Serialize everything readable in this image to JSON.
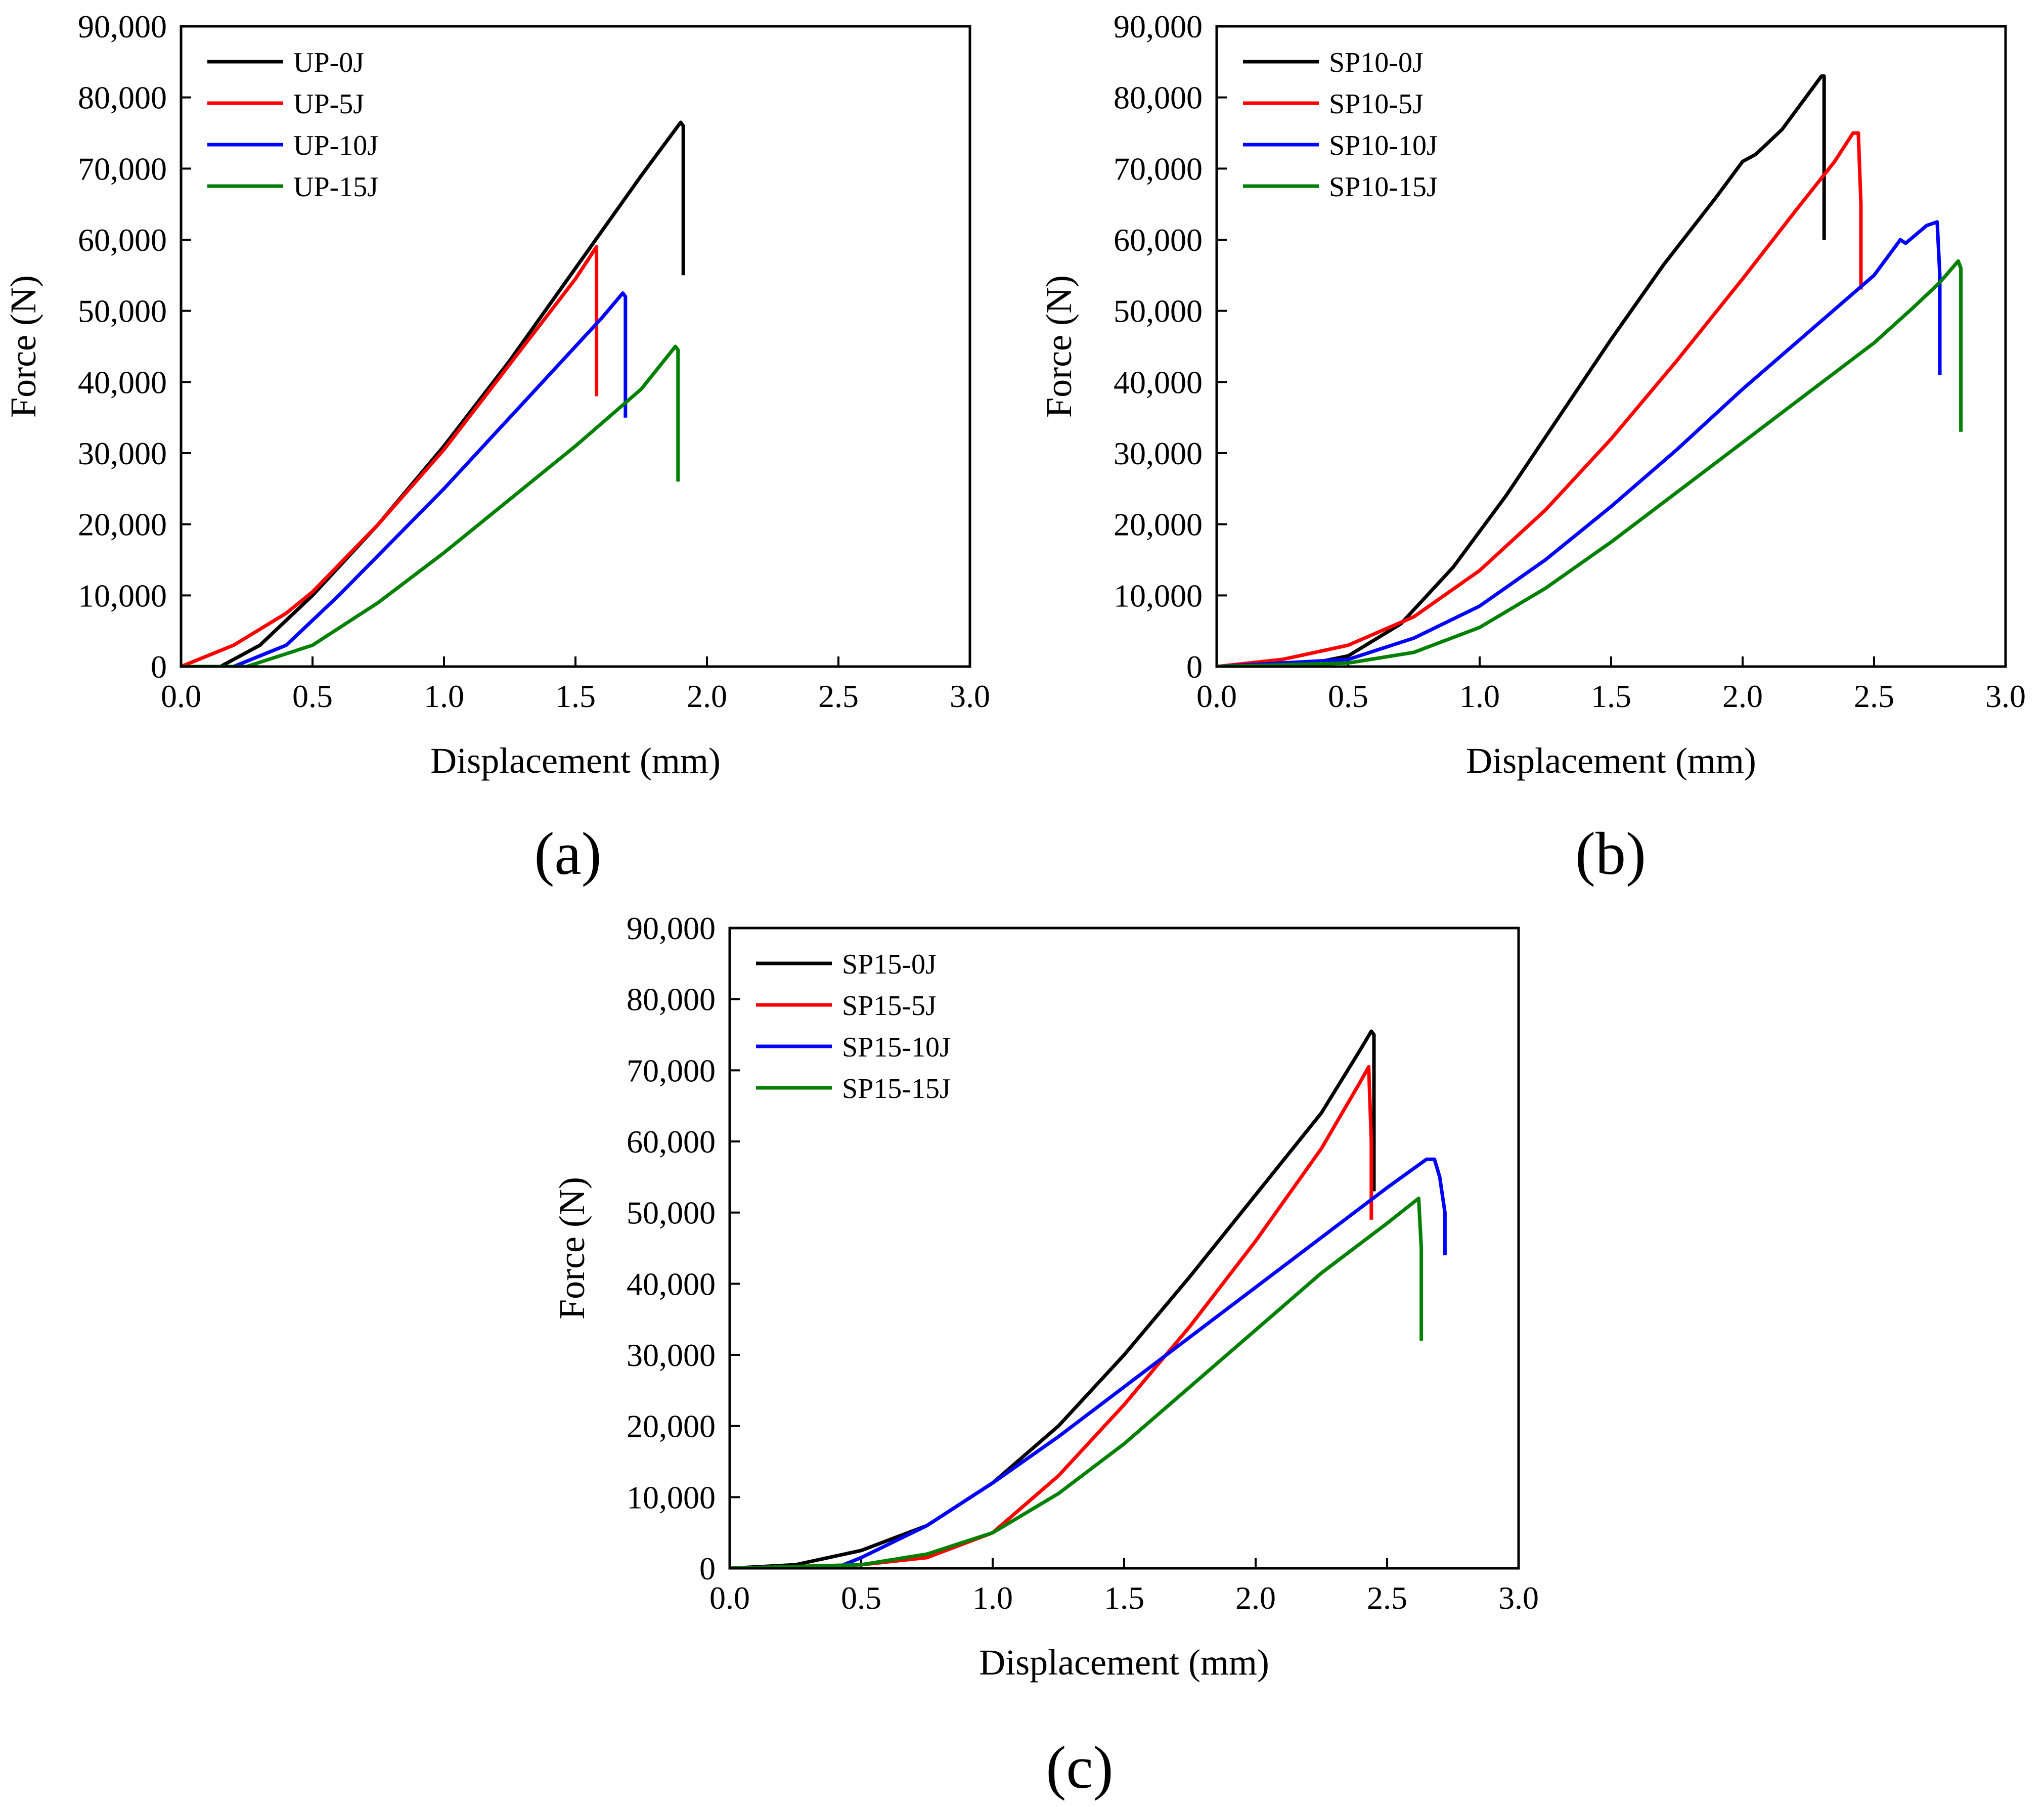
{
  "chart_data": [
    {
      "panel": "a",
      "type": "line",
      "caption": "(a)",
      "xlabel": "Displacement (mm)",
      "ylabel": "Force (N)",
      "xlim": [
        0,
        3.0
      ],
      "ylim": [
        0,
        90000
      ],
      "xticks": [
        "0.0",
        "0.5",
        "1.0",
        "1.5",
        "2.0",
        "2.5",
        "3.0"
      ],
      "yticks": [
        "0",
        "10,000",
        "20,000",
        "30,000",
        "40,000",
        "50,000",
        "60,000",
        "70,000",
        "80,000",
        "90,000"
      ],
      "legend_position": "top-left",
      "series": [
        {
          "name": "UP-0J",
          "color": "#000000",
          "points": [
            [
              0,
              0
            ],
            [
              0.15,
              0
            ],
            [
              0.3,
              3000
            ],
            [
              0.5,
              10000
            ],
            [
              0.75,
              20000
            ],
            [
              1.0,
              31000
            ],
            [
              1.25,
              43000
            ],
            [
              1.5,
              56000
            ],
            [
              1.75,
              69000
            ],
            [
              1.9,
              76500
            ],
            [
              1.91,
              76000
            ],
            [
              1.91,
              55000
            ]
          ]
        },
        {
          "name": "UP-5J",
          "color": "#ff0000",
          "points": [
            [
              0,
              0
            ],
            [
              0.2,
              3000
            ],
            [
              0.4,
              7500
            ],
            [
              0.5,
              10500
            ],
            [
              0.75,
              20000
            ],
            [
              1.0,
              30500
            ],
            [
              1.25,
              42500
            ],
            [
              1.5,
              54500
            ],
            [
              1.58,
              59000
            ],
            [
              1.58,
              52000
            ],
            [
              1.58,
              38000
            ]
          ]
        },
        {
          "name": "UP-10J",
          "color": "#0000ff",
          "points": [
            [
              0,
              0
            ],
            [
              0.2,
              0
            ],
            [
              0.4,
              3000
            ],
            [
              0.6,
              10000
            ],
            [
              0.8,
              17500
            ],
            [
              1.0,
              25000
            ],
            [
              1.2,
              33000
            ],
            [
              1.4,
              41000
            ],
            [
              1.6,
              49000
            ],
            [
              1.68,
              52500
            ],
            [
              1.69,
              52000
            ],
            [
              1.69,
              35000
            ]
          ]
        },
        {
          "name": "UP-15J",
          "color": "#008000",
          "points": [
            [
              0,
              0
            ],
            [
              0.25,
              0
            ],
            [
              0.5,
              3000
            ],
            [
              0.75,
              9000
            ],
            [
              1.0,
              16000
            ],
            [
              1.25,
              23500
            ],
            [
              1.5,
              31000
            ],
            [
              1.75,
              39000
            ],
            [
              1.88,
              45000
            ],
            [
              1.89,
              44500
            ],
            [
              1.89,
              26000
            ]
          ]
        }
      ]
    },
    {
      "panel": "b",
      "type": "line",
      "caption": "(b)",
      "xlabel": "Displacement (mm)",
      "ylabel": "Force (N)",
      "xlim": [
        0,
        3.0
      ],
      "ylim": [
        0,
        90000
      ],
      "xticks": [
        "0.0",
        "0.5",
        "1.0",
        "1.5",
        "2.0",
        "2.5",
        "3.0"
      ],
      "yticks": [
        "0",
        "10,000",
        "20,000",
        "30,000",
        "40,000",
        "50,000",
        "60,000",
        "70,000",
        "80,000",
        "90,000"
      ],
      "legend_position": "top-left",
      "series": [
        {
          "name": "SP10-0J",
          "color": "#000000",
          "points": [
            [
              0,
              0
            ],
            [
              0.3,
              0
            ],
            [
              0.5,
              1500
            ],
            [
              0.7,
              6000
            ],
            [
              0.9,
              14000
            ],
            [
              1.1,
              24000
            ],
            [
              1.3,
              35000
            ],
            [
              1.5,
              46000
            ],
            [
              1.7,
              56500
            ],
            [
              1.9,
              66000
            ],
            [
              2.0,
              71000
            ],
            [
              2.05,
              72000
            ],
            [
              2.15,
              75500
            ],
            [
              2.3,
              83000
            ],
            [
              2.31,
              83000
            ],
            [
              2.31,
              60000
            ]
          ]
        },
        {
          "name": "SP10-5J",
          "color": "#ff0000",
          "points": [
            [
              0,
              0
            ],
            [
              0.25,
              1000
            ],
            [
              0.5,
              3000
            ],
            [
              0.75,
              7000
            ],
            [
              1.0,
              13500
            ],
            [
              1.25,
              22000
            ],
            [
              1.5,
              32000
            ],
            [
              1.75,
              43000
            ],
            [
              2.0,
              54500
            ],
            [
              2.2,
              64000
            ],
            [
              2.35,
              71000
            ],
            [
              2.42,
              75000
            ],
            [
              2.44,
              75000
            ],
            [
              2.45,
              65000
            ],
            [
              2.45,
              53000
            ]
          ]
        },
        {
          "name": "SP10-10J",
          "color": "#0000ff",
          "points": [
            [
              0,
              0
            ],
            [
              0.5,
              1000
            ],
            [
              0.75,
              4000
            ],
            [
              1.0,
              8500
            ],
            [
              1.25,
              15000
            ],
            [
              1.5,
              22500
            ],
            [
              1.75,
              30500
            ],
            [
              2.0,
              39000
            ],
            [
              2.25,
              47000
            ],
            [
              2.5,
              55000
            ],
            [
              2.6,
              60000
            ],
            [
              2.62,
              59500
            ],
            [
              2.7,
              62000
            ],
            [
              2.74,
              62500
            ],
            [
              2.75,
              55000
            ],
            [
              2.75,
              41000
            ]
          ]
        },
        {
          "name": "SP10-15J",
          "color": "#008000",
          "points": [
            [
              0,
              0
            ],
            [
              0.5,
              500
            ],
            [
              0.75,
              2000
            ],
            [
              1.0,
              5500
            ],
            [
              1.25,
              11000
            ],
            [
              1.5,
              17500
            ],
            [
              1.75,
              24500
            ],
            [
              2.0,
              31500
            ],
            [
              2.25,
              38500
            ],
            [
              2.5,
              45500
            ],
            [
              2.65,
              50500
            ],
            [
              2.75,
              54000
            ],
            [
              2.82,
              57000
            ],
            [
              2.83,
              56000
            ],
            [
              2.83,
              33000
            ]
          ]
        }
      ]
    },
    {
      "panel": "c",
      "type": "line",
      "caption": "(c)",
      "xlabel": "Displacement (mm)",
      "ylabel": "Force (N)",
      "xlim": [
        0,
        3.0
      ],
      "ylim": [
        0,
        90000
      ],
      "xticks": [
        "0.0",
        "0.5",
        "1.0",
        "1.5",
        "2.0",
        "2.5",
        "3.0"
      ],
      "yticks": [
        "0",
        "10,000",
        "20,000",
        "30,000",
        "40,000",
        "50,000",
        "60,000",
        "70,000",
        "80,000",
        "90,000"
      ],
      "legend_position": "top-left",
      "series": [
        {
          "name": "SP15-0J",
          "color": "#000000",
          "points": [
            [
              0,
              0
            ],
            [
              0.25,
              500
            ],
            [
              0.5,
              2500
            ],
            [
              0.75,
              6000
            ],
            [
              1.0,
              12000
            ],
            [
              1.25,
              20000
            ],
            [
              1.5,
              30000
            ],
            [
              1.75,
              41000
            ],
            [
              2.0,
              52500
            ],
            [
              2.25,
              64000
            ],
            [
              2.4,
              73000
            ],
            [
              2.44,
              75500
            ],
            [
              2.45,
              75000
            ],
            [
              2.45,
              53000
            ]
          ]
        },
        {
          "name": "SP15-5J",
          "color": "#ff0000",
          "points": [
            [
              0,
              0
            ],
            [
              0.5,
              500
            ],
            [
              0.75,
              1500
            ],
            [
              1.0,
              5000
            ],
            [
              1.25,
              13000
            ],
            [
              1.5,
              23000
            ],
            [
              1.75,
              34000
            ],
            [
              2.0,
              46000
            ],
            [
              2.25,
              59000
            ],
            [
              2.4,
              68500
            ],
            [
              2.43,
              70500
            ],
            [
              2.44,
              60000
            ],
            [
              2.44,
              49000
            ]
          ]
        },
        {
          "name": "SP15-10J",
          "color": "#0000ff",
          "points": [
            [
              0,
              0
            ],
            [
              0.4,
              0
            ],
            [
              0.5,
              1500
            ],
            [
              0.75,
              6000
            ],
            [
              1.0,
              12000
            ],
            [
              1.25,
              18500
            ],
            [
              1.5,
              25500
            ],
            [
              1.75,
              32500
            ],
            [
              2.0,
              39500
            ],
            [
              2.25,
              46500
            ],
            [
              2.5,
              53500
            ],
            [
              2.65,
              57500
            ],
            [
              2.68,
              57500
            ],
            [
              2.7,
              55000
            ],
            [
              2.72,
              50000
            ],
            [
              2.72,
              44000
            ]
          ]
        },
        {
          "name": "SP15-15J",
          "color": "#008000",
          "points": [
            [
              0,
              0
            ],
            [
              0.5,
              500
            ],
            [
              0.75,
              2000
            ],
            [
              1.0,
              5000
            ],
            [
              1.25,
              10500
            ],
            [
              1.5,
              17500
            ],
            [
              1.75,
              25500
            ],
            [
              2.0,
              33500
            ],
            [
              2.25,
              41500
            ],
            [
              2.5,
              48500
            ],
            [
              2.62,
              52000
            ],
            [
              2.63,
              45000
            ],
            [
              2.63,
              32000
            ]
          ]
        }
      ]
    }
  ]
}
